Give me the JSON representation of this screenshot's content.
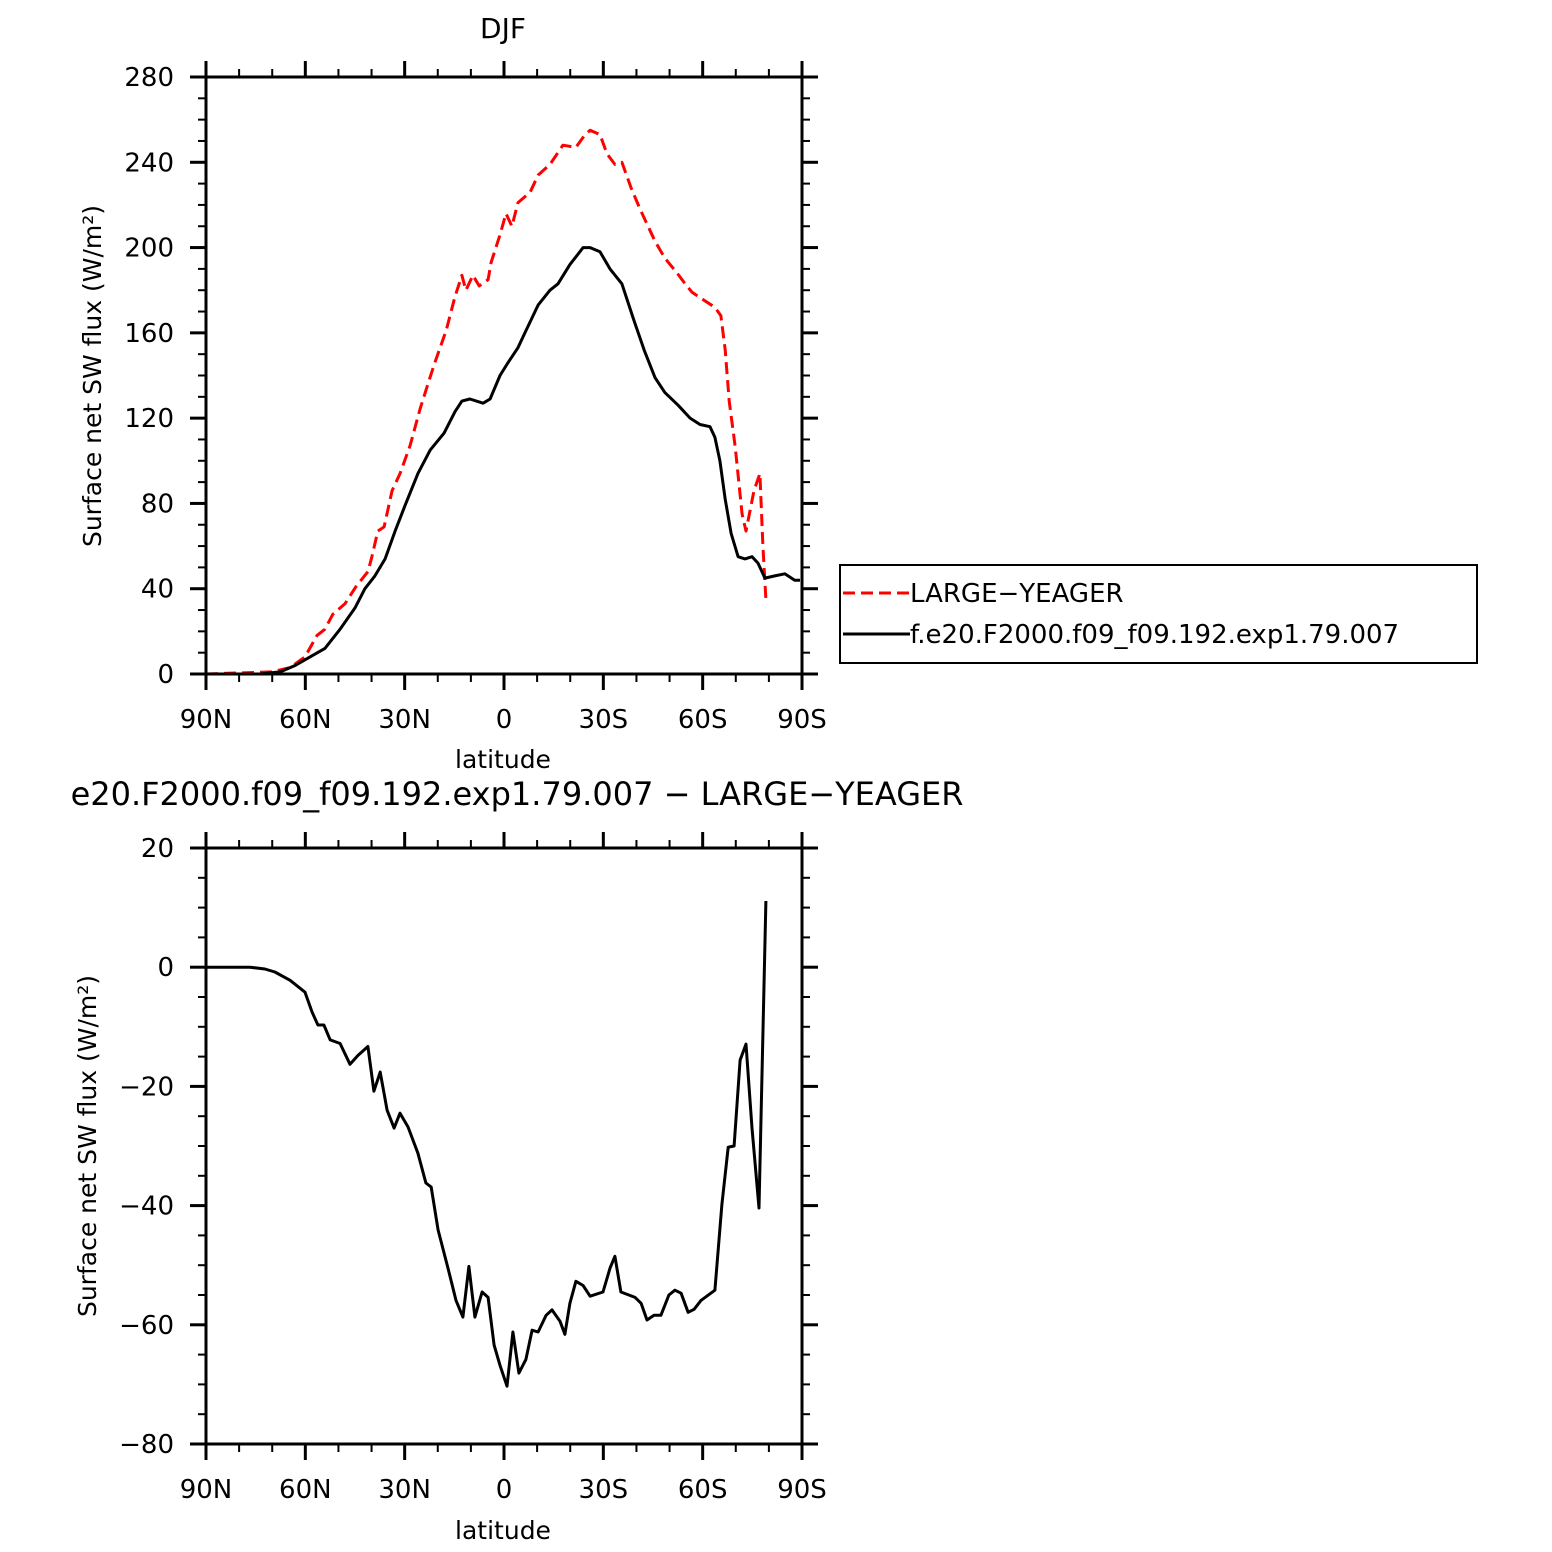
{
  "chart_data": [
    {
      "type": "line",
      "title": "DJF",
      "xlabel": "latitude",
      "ylabel": "Surface net SW flux (W/m²)",
      "xlim": [
        90,
        -90
      ],
      "ylim": [
        0,
        280
      ],
      "xticks": [
        90,
        60,
        30,
        0,
        -30,
        -60,
        -90
      ],
      "xtick_labels": [
        "90N",
        "60N",
        "30N",
        "0",
        "30S",
        "60S",
        "90S"
      ],
      "yticks": [
        0,
        40,
        80,
        120,
        160,
        200,
        240,
        280
      ],
      "ytick_labels": [
        "0",
        "40",
        "80",
        "120",
        "160",
        "200",
        "240",
        "280"
      ],
      "grid": false,
      "legend_placement": "outside-right",
      "series": [
        {
          "name": "LARGE−YEAGER",
          "color": "#ff0000",
          "style": "dashed",
          "x": [
            90,
            70.1,
            64.6,
            60.1,
            56.5,
            54.1,
            51.7,
            48.0,
            44.7,
            41.1,
            39.9,
            38.1,
            36.2,
            33.8,
            31.4,
            28.4,
            25.4,
            23.6,
            21.1,
            17.5,
            14.8,
            12.7,
            11.5,
            9.4,
            7.5,
            4.8,
            3.9,
            1.2,
            -0.6,
            -2.4,
            -4.2,
            -7.9,
            -10.3,
            -13.9,
            -17.8,
            -21.7,
            -24.5,
            -26.0,
            -29.0,
            -31.1,
            -33.5,
            -35.6,
            -38.4,
            -41.1,
            -45.6,
            -48.6,
            -52.3,
            -54.7,
            -56.8,
            -60.7,
            -63.7,
            -65.5,
            -66.8,
            -68.0,
            -69.8,
            -71.9,
            -73.1,
            -75.5,
            -77.3,
            -78.2,
            -79.1
          ],
          "y": [
            0,
            1,
            3,
            8,
            18,
            21,
            28,
            33,
            41,
            48,
            55,
            67,
            69,
            86,
            94,
            107,
            124,
            133,
            145,
            161,
            177,
            187,
            180,
            187,
            182,
            185,
            193,
            206,
            216,
            210,
            221,
            226,
            234,
            239,
            248,
            247,
            253,
            255,
            253,
            244,
            239,
            240,
            228,
            218,
            203,
            195,
            188,
            183,
            179,
            175,
            172,
            168,
            152,
            128,
            107,
            75,
            67,
            86,
            94,
            60,
            35
          ]
        },
        {
          "name": "f.e20.F2000.f09_f09.192.exp1.79.007",
          "color": "#000000",
          "style": "solid",
          "x": [
            90,
            73.7,
            67.6,
            63.1,
            58.6,
            54.1,
            49.5,
            45.0,
            42.0,
            39.0,
            35.9,
            32.9,
            29.9,
            26.0,
            22.3,
            18.1,
            14.8,
            12.7,
            10.3,
            6.3,
            4.2,
            1.2,
            -1.2,
            -4.2,
            -6.3,
            -10.3,
            -13.9,
            -16.3,
            -19.9,
            -23.9,
            -26.0,
            -29.0,
            -32.0,
            -35.6,
            -39.0,
            -42.3,
            -45.6,
            -48.6,
            -52.6,
            -56.2,
            -59.2,
            -62.2,
            -63.7,
            -65.2,
            -66.8,
            -68.6,
            -70.7,
            -72.8,
            -74.9,
            -76.7,
            -78.8,
            -81.8,
            -84.8,
            -87.8,
            -89.4
          ],
          "y": [
            0,
            0,
            1,
            4,
            8,
            12,
            21,
            31,
            40,
            46,
            54,
            67,
            79,
            94,
            105,
            113,
            123,
            128,
            129,
            127,
            129,
            140,
            146,
            153,
            160,
            173,
            180,
            183,
            192,
            200,
            200,
            198,
            190,
            183,
            167,
            152,
            139,
            132,
            126,
            120,
            117,
            116,
            111,
            100,
            82,
            66,
            55,
            54,
            55,
            52,
            45,
            46,
            47,
            44,
            44
          ]
        }
      ]
    },
    {
      "type": "line",
      "title": "e20.F2000.f09_f09.192.exp1.79.007 − LARGE−YEAGER",
      "xlabel": "latitude",
      "ylabel": "Surface net SW flux (W/m²)",
      "xlim": [
        90,
        -90
      ],
      "ylim": [
        -80,
        20
      ],
      "xticks": [
        90,
        60,
        30,
        0,
        -30,
        -60,
        -90
      ],
      "xtick_labels": [
        "90N",
        "60N",
        "30N",
        "0",
        "30S",
        "60S",
        "90S"
      ],
      "yticks": [
        -80,
        -60,
        -40,
        -20,
        0,
        20
      ],
      "ytick_labels": [
        "−80",
        "−60",
        "−40",
        "−20",
        "0",
        "20"
      ],
      "grid": false,
      "series": [
        {
          "color": "#000000",
          "style": "solid",
          "x": [
            90,
            76.7,
            72.2,
            69.2,
            64.6,
            60.1,
            58.0,
            56.2,
            54.4,
            52.5,
            49.5,
            46.5,
            44.1,
            41.1,
            39.3,
            37.4,
            35.3,
            33.2,
            31.4,
            29.0,
            26.0,
            23.6,
            22.0,
            19.9,
            16.9,
            14.5,
            12.4,
            10.6,
            8.8,
            6.6,
            4.8,
            3.0,
            1.2,
            -0.9,
            -2.7,
            -4.5,
            -6.6,
            -8.5,
            -10.3,
            -12.7,
            -14.5,
            -16.9,
            -18.4,
            -19.9,
            -21.7,
            -23.9,
            -26.0,
            -29.9,
            -32.0,
            -33.5,
            -35.3,
            -39.6,
            -41.4,
            -43.2,
            -45.3,
            -47.4,
            -49.8,
            -51.6,
            -53.5,
            -55.6,
            -57.4,
            -59.5,
            -63.7,
            -65.8,
            -67.7,
            -69.5,
            -71.3,
            -73.1,
            -74.9,
            -77.0,
            -79.1
          ],
          "y": [
            0,
            0,
            -0.3,
            -0.8,
            -2.2,
            -4.2,
            -7.5,
            -9.7,
            -9.7,
            -12.2,
            -12.8,
            -16.3,
            -14.8,
            -13.3,
            -20.8,
            -17.6,
            -24.0,
            -27.0,
            -24.5,
            -26.8,
            -31.2,
            -36.2,
            -36.9,
            -44.1,
            -50.5,
            -55.9,
            -58.7,
            -50.2,
            -58.7,
            -54.5,
            -55.4,
            -63.4,
            -66.8,
            -70.3,
            -61.2,
            -68.1,
            -65.8,
            -60.9,
            -61.2,
            -58.4,
            -57.5,
            -59.4,
            -61.6,
            -56.4,
            -52.7,
            -53.4,
            -55.2,
            -54.5,
            -50.5,
            -48.5,
            -54.5,
            -55.4,
            -56.4,
            -59.2,
            -58.4,
            -58.4,
            -55.0,
            -54.2,
            -54.7,
            -57.9,
            -57.4,
            -55.9,
            -54.2,
            -39.8,
            -30.2,
            -30.0,
            -15.6,
            -12.9,
            -27.0,
            -40.4,
            11.1
          ]
        }
      ]
    }
  ]
}
